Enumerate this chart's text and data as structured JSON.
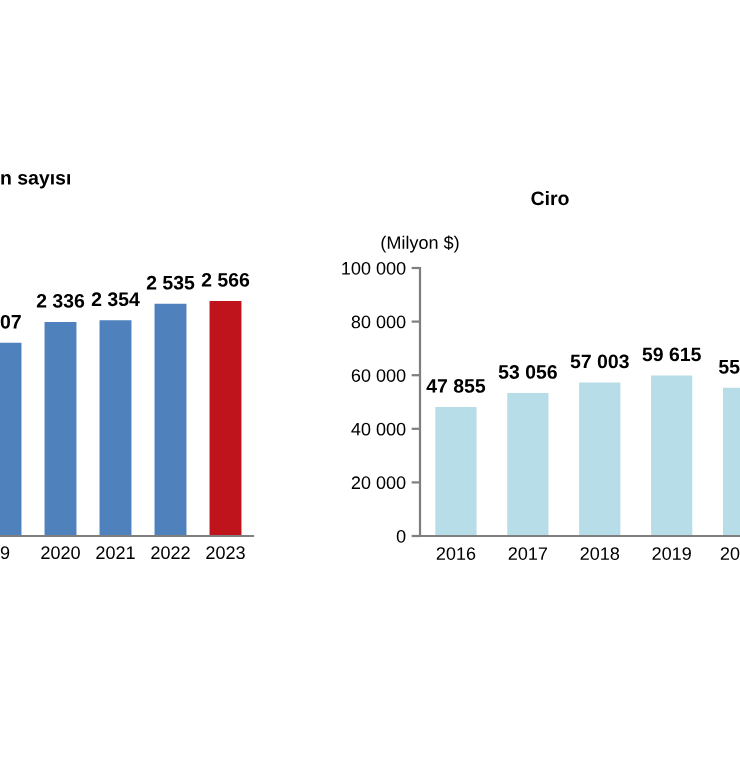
{
  "chart_data": [
    {
      "type": "bar",
      "title": "n sayısı",
      "categories": [
        "9",
        "2020",
        "2021",
        "2022",
        "2023"
      ],
      "values": [
        2107,
        2336,
        2354,
        2535,
        2566
      ],
      "colors": [
        "#4f81bd",
        "#4f81bd",
        "#4f81bd",
        "#4f81bd",
        "#c0141c"
      ],
      "value_labels": [
        null,
        "2 336",
        "2 354",
        "2 535",
        "2 566"
      ],
      "annotations": [
        {
          "text": "07",
          "x": "9",
          "y": 2107
        }
      ],
      "tick_labels": "x",
      "grid": false,
      "legend": false
    },
    {
      "type": "bar",
      "title": "Ciro",
      "ylabel": "(Milyon $)",
      "categories": [
        "2016",
        "2017",
        "2018",
        "2019",
        "20"
      ],
      "values": [
        47855,
        53056,
        57003,
        59615,
        55000
      ],
      "color": "#b7dde8",
      "value_labels": [
        "47 855",
        "53 056",
        "57 003",
        "59 615",
        null
      ],
      "annotations": [
        {
          "text": "55",
          "x": "20",
          "y": 55000
        }
      ],
      "ylim": [
        0,
        100000
      ],
      "yticks": [
        {
          "value": 0,
          "label": "0"
        },
        {
          "value": 20000,
          "label": "20 000"
        },
        {
          "value": 40000,
          "label": "40 000"
        },
        {
          "value": 60000,
          "label": "60 000"
        },
        {
          "value": 80000,
          "label": "80 000"
        },
        {
          "value": 100000,
          "label": "100 000"
        }
      ],
      "grid": false,
      "legend": false
    }
  ]
}
